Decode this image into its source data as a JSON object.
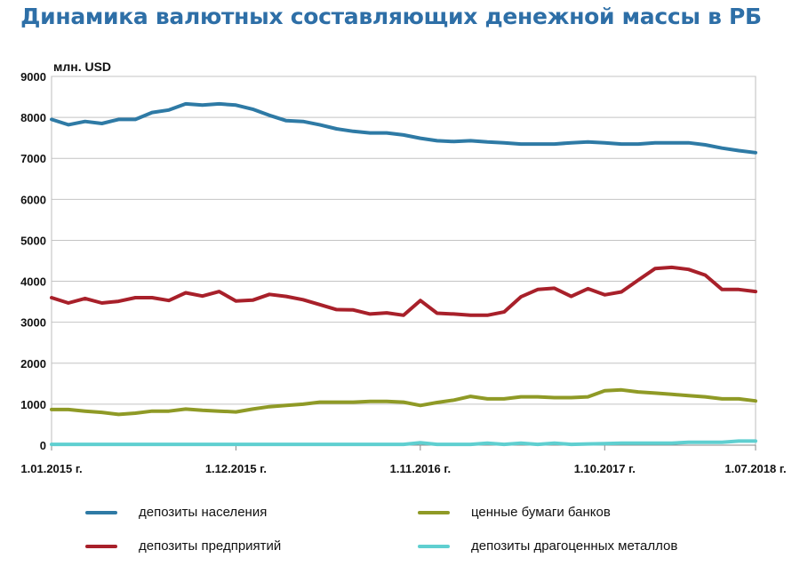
{
  "chart_data": {
    "type": "line",
    "title": "Динамика валютных составляющих денежной массы в РБ",
    "ylabel": "млн. USD",
    "ylim": [
      0,
      9000
    ],
    "yticks": [
      0,
      1000,
      2000,
      3000,
      4000,
      5000,
      6000,
      7000,
      8000,
      9000
    ],
    "x_tick_labels": [
      "1.01.2015 г.",
      "1.12.2015 г.",
      "1.11.2016 г.",
      "1.10.2017 г.",
      "1.07.2018 г."
    ],
    "x_tick_indices": [
      0,
      11,
      22,
      33,
      42
    ],
    "grid": "horizontal",
    "legend_position": "bottom",
    "series": [
      {
        "name": "депозиты населения",
        "color": "#2E7AA5",
        "values": [
          7950,
          7820,
          7900,
          7850,
          7950,
          7950,
          8120,
          8180,
          8330,
          8300,
          8330,
          8300,
          8200,
          8050,
          7920,
          7900,
          7820,
          7720,
          7660,
          7620,
          7620,
          7570,
          7490,
          7430,
          7410,
          7430,
          7400,
          7380,
          7350,
          7350,
          7350,
          7380,
          7400,
          7380,
          7350,
          7350,
          7380,
          7380,
          7380,
          7330,
          7250,
          7190,
          7140
        ]
      },
      {
        "name": "депозиты предприятий",
        "color": "#A8202A",
        "values": [
          3600,
          3470,
          3580,
          3470,
          3510,
          3600,
          3600,
          3530,
          3720,
          3640,
          3750,
          3520,
          3540,
          3680,
          3630,
          3550,
          3430,
          3310,
          3300,
          3200,
          3230,
          3170,
          3530,
          3220,
          3200,
          3170,
          3170,
          3250,
          3620,
          3800,
          3830,
          3630,
          3820,
          3670,
          3740,
          4030,
          4310,
          4340,
          4290,
          4150,
          3800,
          3800,
          3750
        ]
      },
      {
        "name": "ценные бумаги банков",
        "color": "#8F9A26",
        "values": [
          870,
          870,
          830,
          800,
          750,
          780,
          830,
          830,
          880,
          850,
          830,
          810,
          880,
          940,
          970,
          1000,
          1050,
          1050,
          1050,
          1070,
          1070,
          1050,
          970,
          1040,
          1100,
          1190,
          1130,
          1130,
          1180,
          1180,
          1160,
          1160,
          1180,
          1330,
          1350,
          1300,
          1270,
          1240,
          1210,
          1180,
          1130,
          1130,
          1080
        ]
      },
      {
        "name": "депозиты драгоценных металлов",
        "color": "#5FCFD0",
        "values": [
          20,
          20,
          20,
          20,
          20,
          20,
          20,
          20,
          20,
          20,
          20,
          20,
          20,
          20,
          20,
          20,
          20,
          20,
          20,
          20,
          20,
          20,
          60,
          20,
          20,
          20,
          50,
          20,
          50,
          20,
          50,
          20,
          30,
          40,
          50,
          50,
          50,
          50,
          70,
          70,
          70,
          100,
          100
        ]
      }
    ]
  }
}
